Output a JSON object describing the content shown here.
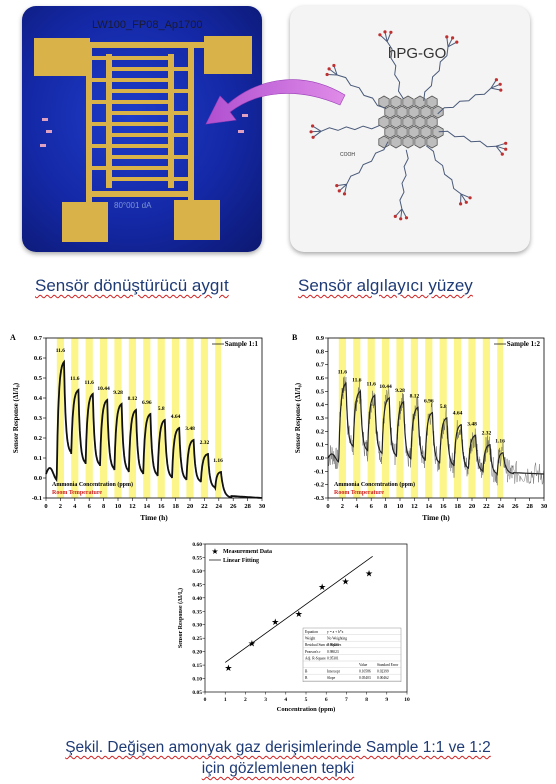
{
  "photos": {
    "device_label": "LW100_FP08_Ap1700",
    "device_label_bottom": "80°001 dA",
    "molecule_label": "hPG-GO",
    "molecule_label_coo": "COOH"
  },
  "captions": {
    "device": "Sensör dönüştürücü aygıt",
    "surface": "Sensör algılayıcı yüzey",
    "figure_line1": "Şekil. Değişen amonyak gaz derişimlerinde Sample 1:1 ve 1:2",
    "figure_line2": "için gözlemlenen tepki"
  },
  "chart_data": [
    {
      "type": "line",
      "panel_label": "A",
      "legend": "Sample 1:1",
      "xlabel": "Time (h)",
      "ylabel": "Sensor Response (ΔI/I₀)",
      "xlim": [
        0,
        30
      ],
      "ylim": [
        -0.1,
        0.7
      ],
      "xticks": [
        0,
        2,
        4,
        6,
        8,
        10,
        12,
        14,
        16,
        18,
        20,
        22,
        24,
        26,
        28,
        30
      ],
      "yticks": [
        -0.1,
        0.0,
        0.1,
        0.2,
        0.3,
        0.4,
        0.5,
        0.6,
        0.7
      ],
      "annotation_concentration": "Ammonia Concentration (ppm)",
      "annotation_temperature": "Room Temperature",
      "concentration_labels": [
        "11.6",
        "11.6",
        "11.6",
        "10.44",
        "9.28",
        "8.12",
        "6.96",
        "5.8",
        "4.64",
        "3.48",
        "2.32",
        "1.16"
      ],
      "exposure_start_h": [
        1.5,
        3.5,
        5.5,
        7.5,
        9.5,
        11.5,
        13.5,
        15.5,
        17.5,
        19.5,
        21.5,
        23.5
      ],
      "exposure_end_h": [
        2.5,
        4.5,
        6.5,
        8.5,
        10.5,
        12.5,
        14.5,
        16.5,
        18.5,
        20.5,
        22.5,
        24.3
      ],
      "peaks": [
        0.58,
        0.44,
        0.42,
        0.39,
        0.37,
        0.34,
        0.32,
        0.29,
        0.25,
        0.19,
        0.12,
        0.03
      ],
      "baseline": [
        0.02,
        0.12,
        0.07,
        0.06,
        0.04,
        0.03,
        0.02,
        0.01,
        0.0,
        -0.01,
        -0.02,
        -0.05
      ],
      "tail_end": -0.1
    },
    {
      "type": "line",
      "panel_label": "B",
      "legend": "Sample 1:2",
      "xlabel": "Time (h)",
      "ylabel": "Sensor Response (ΔI/I₀)",
      "xlim": [
        0,
        30
      ],
      "ylim": [
        -0.3,
        0.9
      ],
      "xticks": [
        0,
        2,
        4,
        6,
        8,
        10,
        12,
        14,
        16,
        18,
        20,
        22,
        24,
        26,
        28,
        30
      ],
      "yticks": [
        -0.3,
        -0.2,
        -0.1,
        0.0,
        0.1,
        0.2,
        0.3,
        0.4,
        0.5,
        0.6,
        0.7,
        0.8,
        0.9
      ],
      "annotation_concentration": "Ammonia Concentration (ppm)",
      "annotation_temperature": "Room Temperature",
      "concentration_labels": [
        "11.6",
        "11.6",
        "11.6",
        "10.44",
        "9.28",
        "8.12",
        "6.96",
        "5.8",
        "4.64",
        "3.48",
        "2.32",
        "1.16"
      ],
      "exposure_start_h": [
        1.5,
        3.5,
        5.5,
        7.5,
        9.5,
        11.5,
        13.5,
        15.5,
        17.5,
        19.5,
        21.5,
        23.5
      ],
      "exposure_end_h": [
        2.5,
        4.5,
        6.5,
        8.5,
        10.5,
        12.5,
        14.5,
        16.5,
        18.5,
        20.5,
        22.5,
        24.3
      ],
      "peaks": [
        0.56,
        0.5,
        0.47,
        0.45,
        0.42,
        0.38,
        0.34,
        0.3,
        0.25,
        0.17,
        0.1,
        0.04
      ],
      "baseline": [
        0.0,
        0.08,
        0.05,
        0.03,
        0.01,
        -0.01,
        -0.02,
        -0.04,
        -0.06,
        -0.08,
        -0.1,
        -0.12
      ],
      "tail_end": -0.12
    },
    {
      "type": "scatter",
      "legend_points": "Measurement Data",
      "legend_line": "Linear Fitting",
      "xlabel": "Concentration (ppm)",
      "ylabel": "Sensor Response (ΔI/I₀)",
      "xlim": [
        0,
        10
      ],
      "ylim": [
        0.05,
        0.6
      ],
      "xticks": [
        0,
        1,
        2,
        3,
        4,
        5,
        6,
        7,
        8,
        9,
        10
      ],
      "yticks": [
        0.05,
        0.1,
        0.15,
        0.2,
        0.25,
        0.3,
        0.35,
        0.4,
        0.45,
        0.5,
        0.55,
        0.6
      ],
      "x": [
        1.16,
        2.32,
        3.48,
        4.64,
        5.8,
        6.96,
        8.12
      ],
      "y": [
        0.14,
        0.23,
        0.31,
        0.34,
        0.44,
        0.46,
        0.49
      ],
      "fit": {
        "intercept": 0.10586,
        "slope": 0.05403
      },
      "stats_table": [
        [
          "Equation",
          "y = a + b*x",
          "",
          ""
        ],
        [
          "Weight",
          "No Weighting",
          "",
          ""
        ],
        [
          "Residual Sum of Squares",
          "0.00403",
          "",
          ""
        ],
        [
          "Pearson's r",
          "0.98023",
          "",
          ""
        ],
        [
          "Adj. R-Square",
          "0.95301",
          "",
          ""
        ],
        [
          "",
          "",
          "Value",
          "Standard Error"
        ],
        [
          "B",
          "Intercept",
          "0.10586",
          "0.02399"
        ],
        [
          "B",
          "Slope",
          "0.05403",
          "0.00462"
        ]
      ]
    }
  ]
}
